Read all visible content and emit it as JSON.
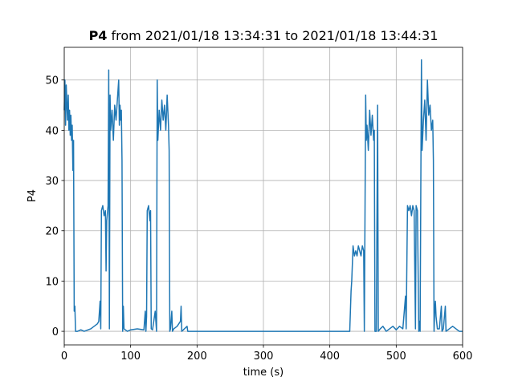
{
  "chart_data": {
    "type": "line",
    "title_variable": "P4",
    "title": "from 2021/01/18 13:34:31 to 2021/01/18 13:44:31",
    "xlabel": "time (s)",
    "ylabel": "P4",
    "xlim": [
      0,
      600
    ],
    "ylim": [
      -2.7,
      56.5
    ],
    "xticks": [
      0,
      100,
      200,
      300,
      400,
      500,
      600
    ],
    "yticks": [
      0,
      10,
      20,
      30,
      40,
      50
    ],
    "grid": true,
    "x": [
      0,
      1,
      2,
      3,
      4,
      5,
      6,
      7,
      8,
      9,
      10,
      11,
      12,
      13,
      14,
      15,
      16,
      17,
      20,
      25,
      30,
      40,
      45,
      50,
      52,
      54,
      55,
      56,
      58,
      60,
      62,
      63,
      64,
      66,
      67,
      68,
      69,
      70,
      72,
      74,
      76,
      78,
      80,
      82,
      83,
      84,
      85,
      86,
      87,
      88,
      89,
      90,
      95,
      100,
      110,
      120,
      122,
      123,
      124,
      125,
      127,
      129,
      130,
      131,
      133,
      137,
      139,
      140,
      141,
      143,
      145,
      147,
      149,
      151,
      153,
      155,
      157,
      158,
      159,
      160,
      162,
      163,
      165,
      170,
      175,
      176,
      177,
      185,
      186,
      200,
      300,
      400,
      430,
      432,
      433,
      435,
      437,
      439,
      441,
      443,
      445,
      447,
      449,
      451,
      452,
      454,
      455,
      456,
      458,
      460,
      462,
      464,
      466,
      467,
      468,
      470,
      472,
      473,
      476,
      480,
      485,
      490,
      495,
      500,
      505,
      510,
      514,
      515,
      517,
      519,
      521,
      523,
      525,
      527,
      529,
      530,
      532,
      534,
      535,
      536,
      538,
      539,
      541,
      543,
      545,
      547,
      549,
      551,
      553,
      555,
      556,
      557,
      558,
      559,
      560,
      562,
      565,
      568,
      569,
      571,
      574,
      575,
      580,
      585,
      590,
      595,
      600
    ],
    "series": [
      {
        "name": "P4",
        "color": "#1f77b4",
        "values": [
          44,
          50,
          41,
          49,
          45,
          42,
          47,
          40,
          44,
          39,
          43,
          38,
          41,
          32,
          38,
          4,
          5,
          0,
          0,
          0.3,
          0,
          0.5,
          1,
          1.5,
          2,
          6,
          0.5,
          24,
          25,
          23,
          24,
          12,
          22,
          25,
          52,
          0.5,
          47,
          40,
          44,
          38,
          45,
          42,
          46,
          50,
          41,
          45,
          42,
          44,
          34,
          0,
          5,
          0.5,
          0,
          0.3,
          0.5,
          0.3,
          4,
          0,
          3,
          24,
          25,
          22,
          24,
          0.5,
          0.3,
          4,
          0,
          50,
          38,
          44,
          40,
          46,
          42,
          45,
          40,
          47,
          41,
          36,
          0,
          0.5,
          4,
          0,
          0.5,
          1,
          2,
          5,
          0,
          1,
          0,
          0,
          0,
          0,
          0,
          8,
          10,
          17,
          15,
          16,
          15,
          17,
          16,
          15,
          17,
          16,
          0,
          47,
          38,
          41,
          36,
          44,
          39,
          43,
          38,
          40,
          0,
          0,
          45,
          0,
          0.5,
          1,
          0,
          0.5,
          1,
          0.3,
          1,
          0.5,
          7,
          0.5,
          25,
          24,
          25,
          23,
          25,
          24,
          0.5,
          25,
          24,
          0,
          2,
          0,
          54,
          36,
          42,
          46,
          38,
          50,
          43,
          45,
          40,
          42,
          34,
          0,
          4,
          6,
          3,
          0.5,
          0.5,
          5,
          0,
          0.5,
          5,
          0,
          0.5,
          1,
          0.5,
          0,
          0
        ]
      }
    ]
  }
}
